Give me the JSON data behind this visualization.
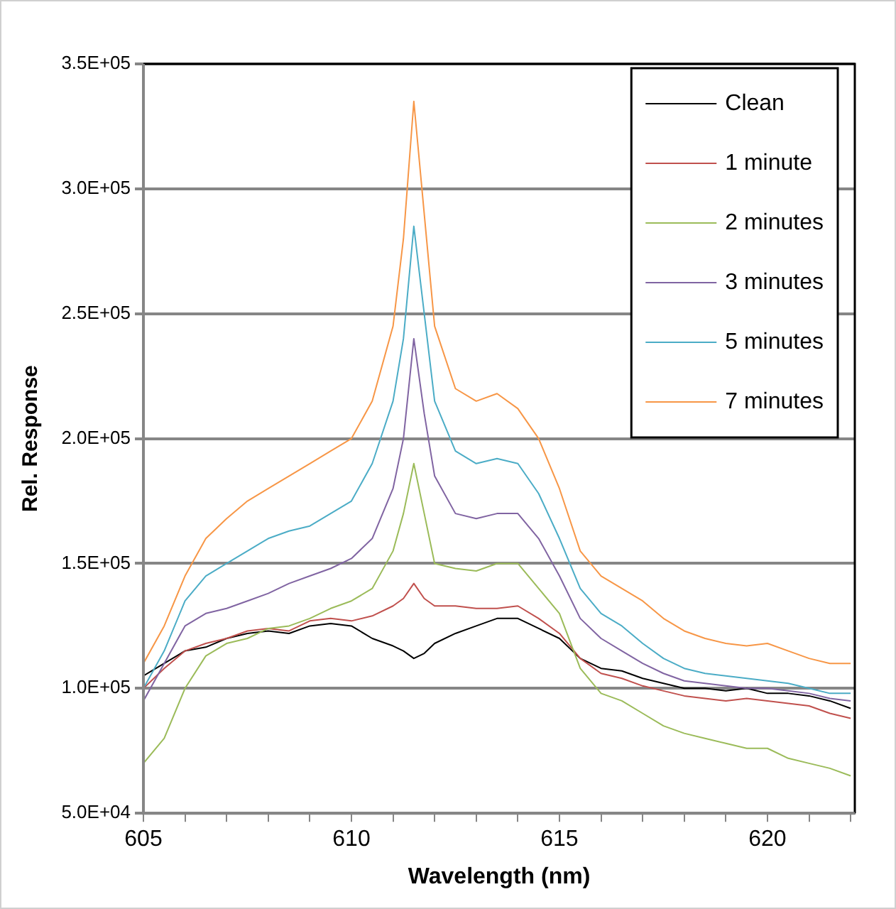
{
  "chart_data": {
    "type": "line",
    "xlabel": "Wavelength (nm)",
    "ylabel": "Rel. Response",
    "x": [
      605,
      605.5,
      606,
      606.5,
      607,
      607.5,
      608,
      608.5,
      609,
      609.5,
      610,
      610.5,
      611,
      611.25,
      611.5,
      611.75,
      612,
      612.5,
      613,
      613.5,
      614,
      614.5,
      615,
      615.5,
      616,
      616.5,
      617,
      617.5,
      618,
      618.5,
      619,
      619.5,
      620,
      620.5,
      621,
      621.5,
      622
    ],
    "series": [
      {
        "name": "Clean",
        "color": "#000000",
        "values": [
          105000,
          110000,
          115000,
          116500,
          120000,
          122000,
          123000,
          122000,
          125000,
          126000,
          125000,
          120000,
          117000,
          115000,
          112000,
          114000,
          118000,
          122000,
          125000,
          128000,
          128000,
          124000,
          120000,
          112000,
          108000,
          107000,
          104000,
          102000,
          100000,
          100000,
          99000,
          100000,
          98000,
          98000,
          97000,
          95000,
          92000
        ]
      },
      {
        "name": "1 minute",
        "color": "#c0504d",
        "values": [
          100000,
          108000,
          115000,
          118000,
          120000,
          123000,
          124000,
          123000,
          127000,
          128000,
          127000,
          129000,
          133000,
          136000,
          142000,
          136000,
          133000,
          133000,
          132000,
          132000,
          133000,
          128000,
          122000,
          112000,
          106000,
          104000,
          101000,
          99000,
          97000,
          96000,
          95000,
          96000,
          95000,
          94000,
          93000,
          90000,
          88000
        ]
      },
      {
        "name": "2 minutes",
        "color": "#9bbb59",
        "values": [
          70000,
          80000,
          100000,
          113000,
          118000,
          120000,
          124000,
          125000,
          128000,
          132000,
          135000,
          140000,
          155000,
          170000,
          190000,
          170000,
          150000,
          148000,
          147000,
          150000,
          150000,
          140000,
          130000,
          108000,
          98000,
          95000,
          90000,
          85000,
          82000,
          80000,
          78000,
          76000,
          76000,
          72000,
          70000,
          68000,
          65000
        ]
      },
      {
        "name": "3 minutes",
        "color": "#8064a2",
        "values": [
          95000,
          110000,
          125000,
          130000,
          132000,
          135000,
          138000,
          142000,
          145000,
          148000,
          152000,
          160000,
          180000,
          200000,
          240000,
          210000,
          185000,
          170000,
          168000,
          170000,
          170000,
          160000,
          145000,
          128000,
          120000,
          115000,
          110000,
          106000,
          103000,
          102000,
          101000,
          100000,
          100000,
          99000,
          98000,
          96000,
          95000
        ]
      },
      {
        "name": "5 minutes",
        "color": "#4bacc6",
        "values": [
          100000,
          115000,
          135000,
          145000,
          150000,
          155000,
          160000,
          163000,
          165000,
          170000,
          175000,
          190000,
          215000,
          240000,
          285000,
          250000,
          215000,
          195000,
          190000,
          192000,
          190000,
          178000,
          160000,
          140000,
          130000,
          125000,
          118000,
          112000,
          108000,
          106000,
          105000,
          104000,
          103000,
          102000,
          100000,
          98000,
          98000
        ]
      },
      {
        "name": "7 minutes",
        "color": "#f79646",
        "values": [
          110000,
          125000,
          145000,
          160000,
          168000,
          175000,
          180000,
          185000,
          190000,
          195000,
          200000,
          215000,
          245000,
          280000,
          335000,
          290000,
          245000,
          220000,
          215000,
          218000,
          212000,
          200000,
          180000,
          155000,
          145000,
          140000,
          135000,
          128000,
          123000,
          120000,
          118000,
          117000,
          118000,
          115000,
          112000,
          110000,
          110000
        ]
      }
    ],
    "xlim": [
      605,
      622.1
    ],
    "xticks": [
      605,
      {
        "value": 606,
        "label": null
      },
      {
        "value": 607,
        "label": null
      },
      {
        "value": 608,
        "label": null
      },
      {
        "value": 609,
        "label": null
      },
      610,
      {
        "value": 611,
        "label": null
      },
      {
        "value": 612,
        "label": null
      },
      {
        "value": 613,
        "label": null
      },
      {
        "value": 614,
        "label": null
      },
      615,
      {
        "value": 616,
        "label": null
      },
      {
        "value": 617,
        "label": null
      },
      {
        "value": 618,
        "label": null
      },
      {
        "value": 619,
        "label": null
      },
      620,
      {
        "value": 621,
        "label": null
      },
      {
        "value": 622,
        "label": null
      }
    ],
    "ylim": [
      50000,
      350000
    ],
    "yticks": [
      {
        "value": 50000,
        "label": "5.0E+04"
      },
      {
        "value": 100000,
        "label": "1.0E+05"
      },
      {
        "value": 150000,
        "label": "1.5E+05"
      },
      {
        "value": 200000,
        "label": "2.0E+05"
      },
      {
        "value": 250000,
        "label": "2.5E+05"
      },
      {
        "value": 300000,
        "label": "3.0E+05"
      },
      {
        "value": 350000,
        "label": "3.5E+05"
      }
    ],
    "grid": "y",
    "legend": "top right",
    "marker": "none",
    "line_style": "solid"
  }
}
